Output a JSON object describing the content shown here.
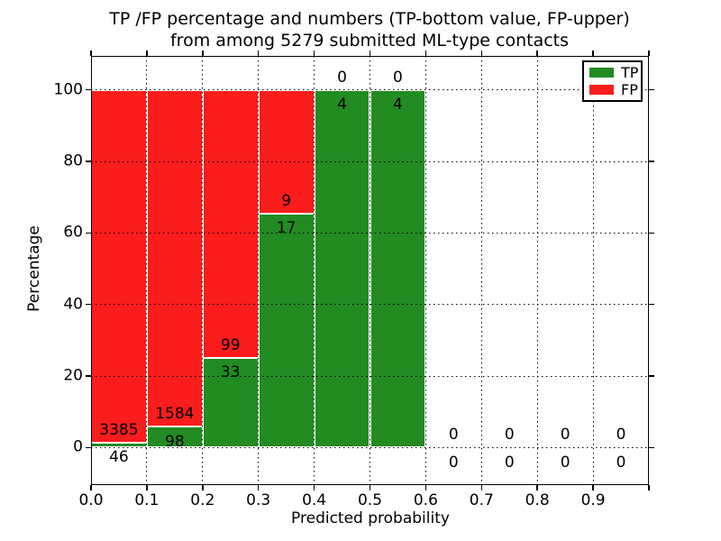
{
  "figure": {
    "title_line1": "TP /FP percentage and numbers (TP-bottom value, FP-upper)",
    "title_line2": "from among 5279 submitted ML-type contacts",
    "xlabel": "Predicted probability",
    "ylabel": "Percentage"
  },
  "legend": {
    "position": "upper right",
    "items": [
      {
        "label": "TP",
        "color": "#228b22"
      },
      {
        "label": "FP",
        "color": "#fb1c1c"
      }
    ]
  },
  "chart_data": {
    "type": "bar",
    "stacked": true,
    "title": "TP /FP percentage and numbers (TP-bottom value, FP-upper) from among 5279 submitted ML-type contacts",
    "xlabel": "Predicted probability",
    "ylabel": "Percentage",
    "total_contacts": 5279,
    "xlim": [
      0.0,
      1.0
    ],
    "ylim": [
      -10.5,
      109.5
    ],
    "grid": true,
    "legend_position": "upper right",
    "bin_width": 0.1,
    "bin_starts": [
      0.0,
      0.1,
      0.2,
      0.3,
      0.4,
      0.5,
      0.6,
      0.7,
      0.8,
      0.9
    ],
    "xtick_labels": [
      "0.0",
      "0.1",
      "0.2",
      "0.3",
      "0.4",
      "0.5",
      "0.6",
      "0.7",
      "0.8",
      "0.9"
    ],
    "ytick_values": [
      0,
      20,
      40,
      60,
      80,
      100
    ],
    "series": [
      {
        "name": "TP",
        "color": "#228b22",
        "counts": [
          46,
          98,
          33,
          17,
          4,
          4,
          0,
          0,
          0,
          0
        ],
        "percent": [
          1.3,
          5.8,
          25.0,
          65.4,
          100.0,
          100.0,
          0,
          0,
          0,
          0
        ]
      },
      {
        "name": "FP",
        "color": "#fb1c1c",
        "counts": [
          3385,
          1584,
          99,
          9,
          0,
          0,
          0,
          0,
          0,
          0
        ],
        "percent": [
          98.7,
          94.2,
          75.0,
          34.6,
          0.0,
          0.0,
          0,
          0,
          0,
          0
        ]
      }
    ]
  }
}
